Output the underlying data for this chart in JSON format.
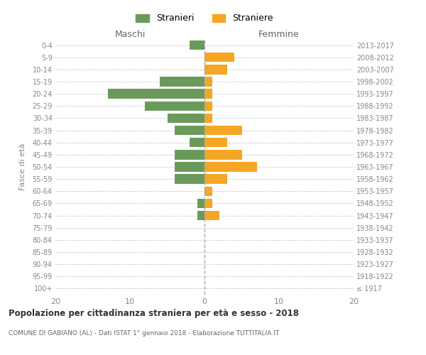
{
  "age_groups": [
    "100+",
    "95-99",
    "90-94",
    "85-89",
    "80-84",
    "75-79",
    "70-74",
    "65-69",
    "60-64",
    "55-59",
    "50-54",
    "45-49",
    "40-44",
    "35-39",
    "30-34",
    "25-29",
    "20-24",
    "15-19",
    "10-14",
    "5-9",
    "0-4"
  ],
  "birth_years": [
    "≤ 1917",
    "1918-1922",
    "1923-1927",
    "1928-1932",
    "1933-1937",
    "1938-1942",
    "1943-1947",
    "1948-1952",
    "1953-1957",
    "1958-1962",
    "1963-1967",
    "1968-1972",
    "1973-1977",
    "1978-1982",
    "1983-1987",
    "1988-1992",
    "1993-1997",
    "1998-2002",
    "2003-2007",
    "2008-2012",
    "2013-2017"
  ],
  "maschi": [
    0,
    0,
    0,
    0,
    0,
    0,
    1,
    1,
    0,
    4,
    4,
    4,
    2,
    4,
    5,
    8,
    13,
    6,
    0,
    0,
    2
  ],
  "femmine": [
    0,
    0,
    0,
    0,
    0,
    0,
    2,
    1,
    1,
    3,
    7,
    5,
    3,
    5,
    1,
    1,
    1,
    1,
    3,
    4,
    0
  ],
  "stranieri_color": "#6a9a5b",
  "straniere_color": "#f5a623",
  "title": "Popolazione per cittadinanza straniera per età e sesso - 2018",
  "subtitle": "COMUNE DI GABIANO (AL) - Dati ISTAT 1° gennaio 2018 - Elaborazione TUTTITALIA.IT",
  "xlabel_maschi": "Maschi",
  "xlabel_femmine": "Femmine",
  "ylabel_left": "Fasce di età",
  "xlim": 20,
  "legend_stranieri": "Stranieri",
  "legend_straniere": "Straniere",
  "background_color": "#ffffff",
  "grid_color": "#cccccc",
  "bar_height": 0.78
}
